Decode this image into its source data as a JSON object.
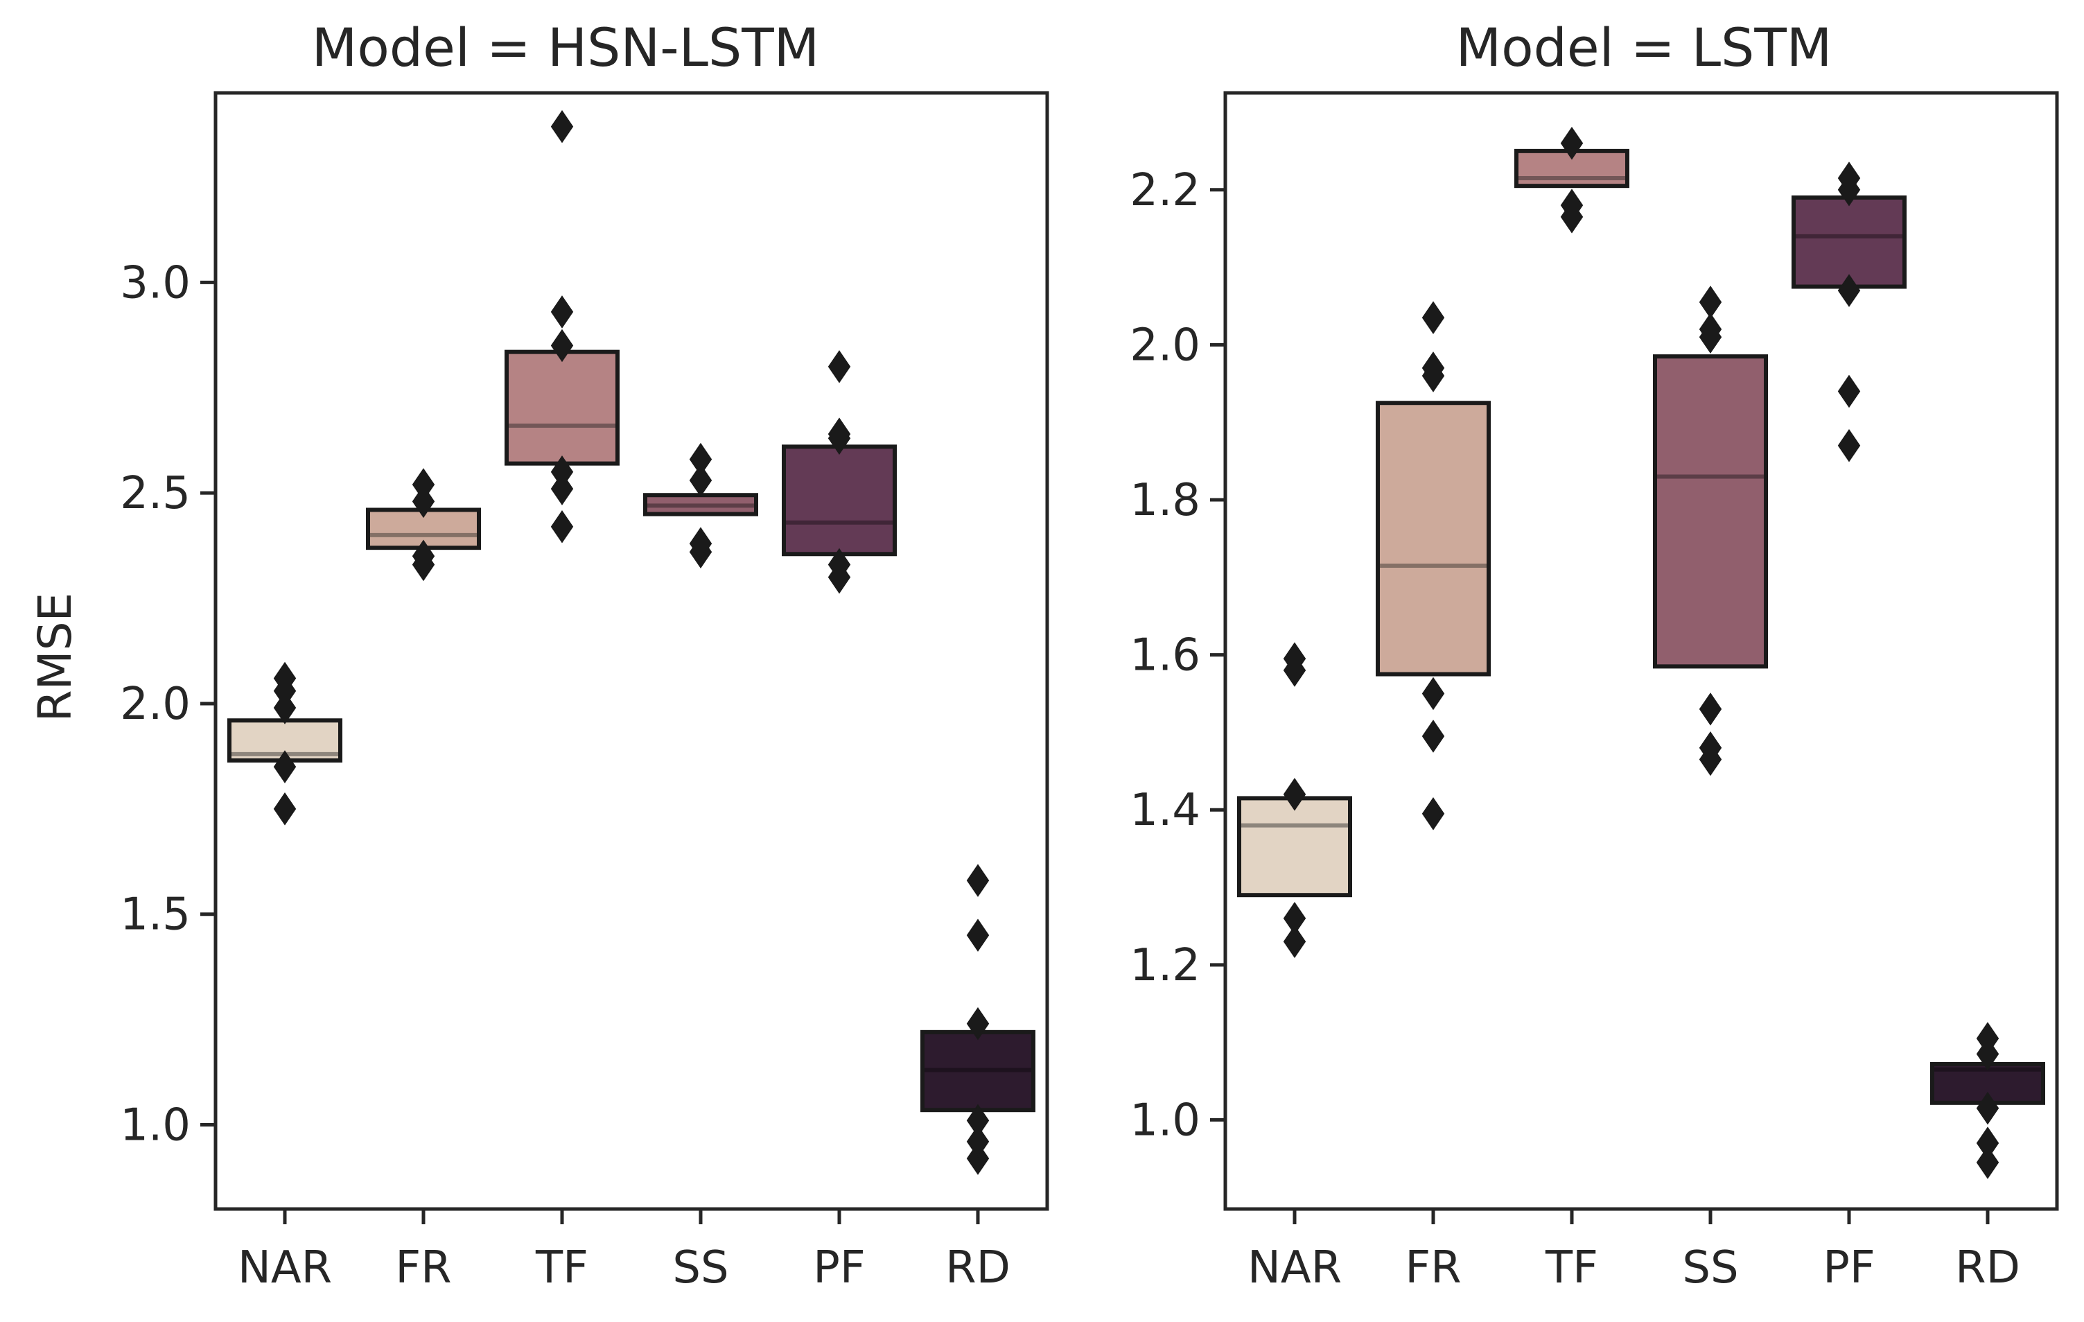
{
  "chart_data": [
    {
      "type": "boxen",
      "title": "Model = HSN-LSTM",
      "xlabel": "",
      "ylabel": "RMSE",
      "ylim": [
        0.8,
        3.45
      ],
      "yticks": [
        1.0,
        1.5,
        2.0,
        2.5,
        3.0
      ],
      "ytick_labels": [
        "1.0",
        "1.5",
        "2.0",
        "2.5",
        "3.0"
      ],
      "categories": [
        "NAR",
        "FR",
        "TF",
        "SS",
        "PF",
        "RD"
      ],
      "boxes": [
        {
          "category": "NAR",
          "q1": 1.865,
          "median": 1.88,
          "q3": 1.96,
          "color": "#e2d4c4",
          "median_color": "#8d857c",
          "outliers": [
            1.75,
            1.85,
            1.99,
            2.03,
            2.06
          ]
        },
        {
          "category": "FR",
          "q1": 2.37,
          "median": 2.4,
          "q3": 2.46,
          "color": "#cdaa9b",
          "median_color": "#847066",
          "outliers": [
            2.33,
            2.35,
            2.48,
            2.52
          ]
        },
        {
          "category": "TF",
          "q1": 2.57,
          "median": 2.66,
          "q3": 2.835,
          "color": "#b58384",
          "median_color": "#735657",
          "outliers": [
            2.42,
            2.51,
            2.55,
            2.85,
            2.93,
            3.37
          ]
        },
        {
          "category": "SS",
          "q1": 2.45,
          "median": 2.47,
          "q3": 2.495,
          "color": "#915f6d",
          "median_color": "#5c3e47",
          "outliers": [
            2.36,
            2.38,
            2.53,
            2.58
          ]
        },
        {
          "category": "PF",
          "q1": 2.355,
          "median": 2.43,
          "q3": 2.61,
          "color": "#633a55",
          "median_color": "#402537",
          "outliers": [
            2.3,
            2.33,
            2.63,
            2.64,
            2.8
          ]
        },
        {
          "category": "RD",
          "q1": 1.035,
          "median": 1.13,
          "q3": 1.22,
          "color": "#2d1b2e",
          "median_color": "#1d121e",
          "outliers": [
            0.92,
            0.96,
            1.01,
            1.24,
            1.45,
            1.58
          ]
        }
      ]
    },
    {
      "type": "boxen",
      "title": "Model = LSTM",
      "xlabel": "",
      "ylabel": "",
      "ylim": [
        0.885,
        2.325
      ],
      "yticks": [
        1.0,
        1.2,
        1.4,
        1.6,
        1.8,
        2.0,
        2.2
      ],
      "ytick_labels": [
        "1.0",
        "1.2",
        "1.4",
        "1.6",
        "1.8",
        "2.0",
        "2.2"
      ],
      "categories": [
        "NAR",
        "FR",
        "TF",
        "SS",
        "PF",
        "RD"
      ],
      "boxes": [
        {
          "category": "NAR",
          "q1": 1.29,
          "median": 1.38,
          "q3": 1.415,
          "color": "#e2d4c4",
          "median_color": "#8d857c",
          "outliers": [
            1.23,
            1.26,
            1.42,
            1.58,
            1.595
          ]
        },
        {
          "category": "FR",
          "q1": 1.575,
          "median": 1.715,
          "q3": 1.925,
          "color": "#cdaa9b",
          "median_color": "#847066",
          "outliers": [
            1.395,
            1.495,
            1.55,
            1.96,
            1.97,
            2.035
          ]
        },
        {
          "category": "TF",
          "q1": 2.205,
          "median": 2.215,
          "q3": 2.25,
          "color": "#b58384",
          "median_color": "#735657",
          "outliers": [
            2.165,
            2.18,
            2.26
          ]
        },
        {
          "category": "SS",
          "q1": 1.585,
          "median": 1.83,
          "q3": 1.985,
          "color": "#915f6d",
          "median_color": "#5c3e47",
          "outliers": [
            1.465,
            1.48,
            1.53,
            2.01,
            2.02,
            2.055
          ]
        },
        {
          "category": "PF",
          "q1": 2.075,
          "median": 2.14,
          "q3": 2.19,
          "color": "#633a55",
          "median_color": "#402537",
          "outliers": [
            1.87,
            1.94,
            2.07,
            2.2,
            2.215
          ]
        },
        {
          "category": "RD",
          "q1": 1.022,
          "median": 1.065,
          "q3": 1.072,
          "color": "#2d1b2e",
          "median_color": "#1d121e",
          "outliers": [
            0.945,
            0.97,
            1.015,
            1.085,
            1.105
          ]
        }
      ]
    }
  ]
}
